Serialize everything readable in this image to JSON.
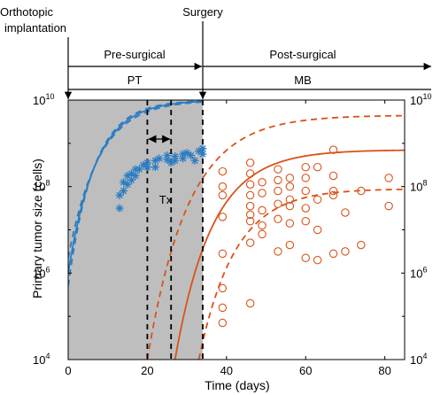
{
  "chart_data": {
    "type": "scatter",
    "xlabel": "Time (days)",
    "ylabel": "Primary tumor size (cells)",
    "xlim": [
      0,
      85
    ],
    "ylim_log10": [
      4,
      10
    ],
    "y_scale": "log",
    "grid": false,
    "x_ticks": [
      0,
      20,
      40,
      60,
      80
    ],
    "x_tick_labels": [
      "0",
      "20",
      "40",
      "60",
      "80"
    ],
    "y_tick_exponents": [
      4,
      6,
      8,
      10
    ],
    "y_tick_base": "10",
    "annotations": {
      "orthotopic_line1": "Orthotopic",
      "orthotopic_line2": "implantation",
      "surgery": "Surgery",
      "pre_surgical": "Pre-surgical",
      "post_surgical": "Post-surgical",
      "pt": "PT",
      "mb": "MB",
      "tx": "Tx"
    },
    "events": {
      "implantation_day": 0,
      "surgery_day": 34,
      "tx_start_day": 20,
      "tx_end_day": 26
    },
    "colors": {
      "pt": "#2a7dc4",
      "mb": "#d95319",
      "shade": "#bebebe"
    },
    "series": [
      {
        "marker": "asterisk",
        "color": "#2a7dc4",
        "points": [
          [
            13,
            7.5
          ],
          [
            13,
            7.8
          ],
          [
            14,
            7.9
          ],
          [
            14,
            8.1
          ],
          [
            15,
            8.05
          ],
          [
            15,
            8.25
          ],
          [
            16,
            8.3
          ],
          [
            16,
            8.15
          ],
          [
            17,
            8.4
          ],
          [
            17,
            8.25
          ],
          [
            18,
            8.4
          ],
          [
            19,
            8.5
          ],
          [
            20,
            8.45
          ],
          [
            20,
            8.55
          ],
          [
            22,
            8.6
          ],
          [
            22,
            8.45
          ],
          [
            23,
            8.65
          ],
          [
            25,
            8.62
          ],
          [
            25,
            8.72
          ],
          [
            26,
            8.55
          ],
          [
            27,
            8.7
          ],
          [
            27,
            8.6
          ],
          [
            29,
            8.75
          ],
          [
            29,
            8.65
          ],
          [
            30,
            8.78
          ],
          [
            31,
            8.72
          ],
          [
            33,
            8.82
          ],
          [
            34,
            8.88
          ],
          [
            34,
            8.75
          ],
          [
            32,
            8.6
          ]
        ]
      },
      {
        "marker": "circle",
        "color": "#d95319",
        "points": [
          [
            39,
            4.85
          ],
          [
            39,
            5.2
          ],
          [
            39,
            5.65
          ],
          [
            39,
            6.45
          ],
          [
            39,
            7.3
          ],
          [
            39,
            7.8
          ],
          [
            39,
            8.0
          ],
          [
            39,
            8.35
          ],
          [
            46,
            5.3
          ],
          [
            46,
            6.7
          ],
          [
            46,
            7.2
          ],
          [
            46,
            7.35
          ],
          [
            46,
            7.55
          ],
          [
            46,
            7.8
          ],
          [
            46,
            8.05
          ],
          [
            46,
            8.3
          ],
          [
            46,
            8.55
          ],
          [
            49,
            6.9
          ],
          [
            49,
            7.1
          ],
          [
            49,
            7.45
          ],
          [
            49,
            7.85
          ],
          [
            49,
            8.1
          ],
          [
            53,
            6.5
          ],
          [
            53,
            7.25
          ],
          [
            53,
            7.6
          ],
          [
            53,
            7.9
          ],
          [
            53,
            8.15
          ],
          [
            53,
            8.4
          ],
          [
            56,
            6.65
          ],
          [
            56,
            7.15
          ],
          [
            56,
            7.55
          ],
          [
            56,
            7.7
          ],
          [
            56,
            8.0
          ],
          [
            56,
            8.2
          ],
          [
            60,
            6.35
          ],
          [
            60,
            7.2
          ],
          [
            60,
            7.5
          ],
          [
            60,
            7.9
          ],
          [
            60,
            8.2
          ],
          [
            60,
            8.45
          ],
          [
            63,
            6.3
          ],
          [
            63,
            7.0
          ],
          [
            63,
            7.7
          ],
          [
            63,
            8.45
          ],
          [
            67,
            6.45
          ],
          [
            67,
            7.8
          ],
          [
            67,
            7.9
          ],
          [
            67,
            8.25
          ],
          [
            67,
            8.85
          ],
          [
            70,
            6.5
          ],
          [
            70,
            7.4
          ],
          [
            74,
            6.65
          ],
          [
            74,
            7.9
          ],
          [
            81,
            7.55
          ],
          [
            81,
            8.2
          ]
        ]
      }
    ],
    "fit_curves": [
      {
        "name": "pt_mean",
        "color": "#2a7dc4",
        "style": "solid",
        "K": 10.0,
        "y0": 6.0,
        "t0": 0,
        "r": 0.143,
        "range": [
          0,
          34
        ]
      },
      {
        "name": "pt_upper",
        "color": "#2a7dc4",
        "style": "dashed",
        "K": 10.0,
        "y0": 6.35,
        "t0": 0,
        "r": 0.13,
        "range": [
          0,
          34
        ]
      },
      {
        "name": "pt_lower",
        "color": "#2a7dc4",
        "style": "dashed",
        "K": 10.0,
        "y0": 5.7,
        "t0": 0,
        "r": 0.155,
        "range": [
          0,
          34
        ]
      },
      {
        "name": "mb_mean",
        "color": "#d95319",
        "style": "solid",
        "K": 8.85,
        "y0": 4.0,
        "t0": 27,
        "r": 0.107,
        "range": [
          27,
          85
        ]
      },
      {
        "name": "mb_upper",
        "color": "#d95319",
        "style": "dashed",
        "K": 9.65,
        "y0": 4.0,
        "t0": 20,
        "r": 0.097,
        "range": [
          20,
          85
        ]
      },
      {
        "name": "mb_lower",
        "color": "#d95319",
        "style": "dashed",
        "K": 7.95,
        "y0": 4.0,
        "t0": 33,
        "r": 0.11,
        "range": [
          33,
          85
        ]
      }
    ]
  }
}
